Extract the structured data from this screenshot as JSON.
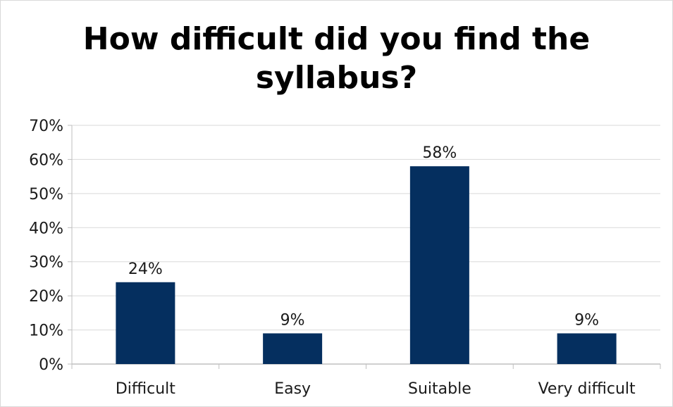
{
  "chart_data": {
    "type": "bar",
    "title_lines": [
      "How difficult did you find the",
      "syllabus?"
    ],
    "categories": [
      "Difficult",
      "Easy",
      "Suitable",
      "Very difficult"
    ],
    "values": [
      24,
      9,
      58,
      9
    ],
    "value_labels": [
      "24%",
      "9%",
      "58%",
      "9%"
    ],
    "yticks": [
      "0%",
      "10%",
      "20%",
      "30%",
      "40%",
      "50%",
      "60%",
      "70%"
    ],
    "ylim": [
      0,
      70
    ],
    "grid": true,
    "bar_color": "#052f5f",
    "grid_color": "#d9d9d9"
  }
}
